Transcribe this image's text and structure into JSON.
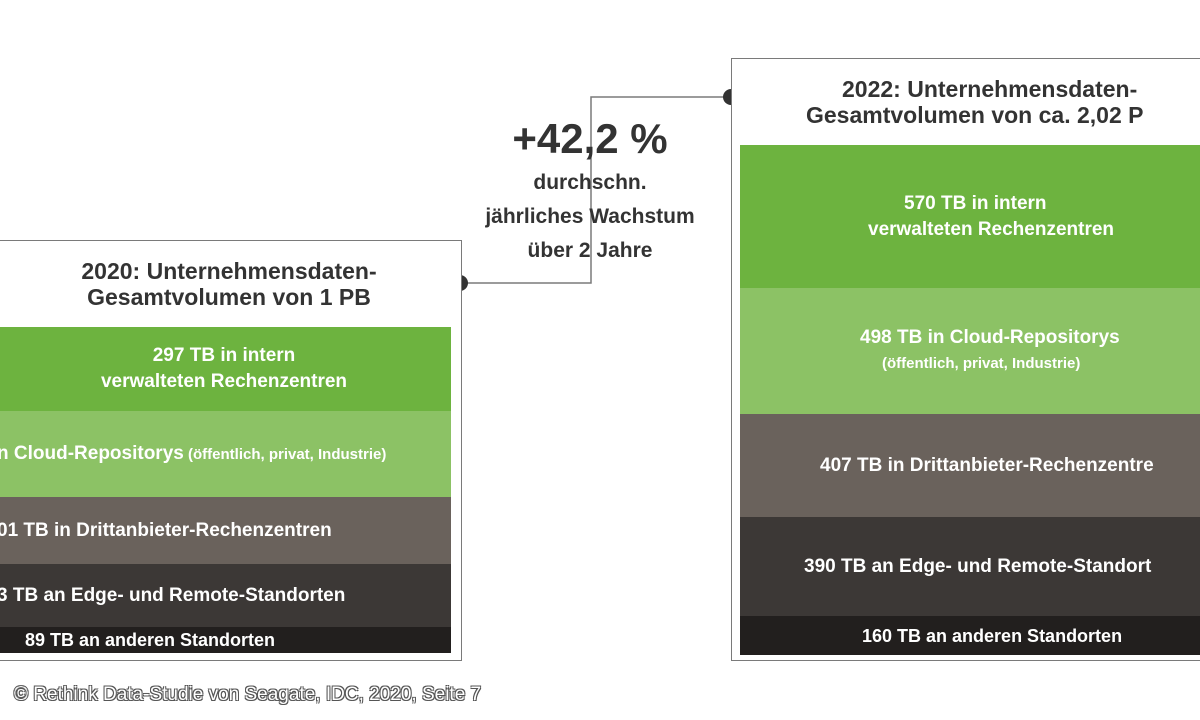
{
  "panel_2020": {
    "title_line1": "2020: Unternehmensdaten-",
    "title_line2": "Gesamtvolumen von 1 PB",
    "segments": [
      {
        "line1": "297 TB in intern",
        "line2": "verwalteten Rechenzentren",
        "color": "#6db33f"
      },
      {
        "line1": "n Cloud-Repositorys",
        "note": " (öffentlich, privat, Industrie)",
        "color": "#8cc265"
      },
      {
        "line1": "01 TB in Drittanbieter-Rechenzentren",
        "color": "#6a625c"
      },
      {
        "line1": "3 TB an Edge- und Remote-Standorten",
        "color": "#3c3836"
      },
      {
        "line1": "89 TB an anderen Standorten",
        "color": "#221f1e"
      }
    ]
  },
  "panel_2022": {
    "title_line1": "2022: Unternehmensdaten-",
    "title_line2": "Gesamtvolumen von ca. 2,02 P",
    "segments": [
      {
        "line1": "570 TB in intern",
        "line2": "verwalteten Rechenzentren",
        "color": "#6db33f"
      },
      {
        "line1": "498 TB in Cloud-Repositorys",
        "line2": "(öffentlich, privat, Industrie)",
        "color": "#8cc265"
      },
      {
        "line1": "407 TB in Drittanbieter-Rechenzentre",
        "color": "#6a625c"
      },
      {
        "line1": "390 TB an Edge- und Remote-Standort",
        "color": "#3c3836"
      },
      {
        "line1": "160 TB an anderen Standorten",
        "color": "#221f1e"
      }
    ]
  },
  "growth": {
    "value": "+42,2 %",
    "line1": "durchschn.",
    "line2": "jährliches Wachstum",
    "line3": "über 2 Jahre"
  },
  "credit": "© Rethink Data-Studie von Seagate, IDC, 2020, Seite 7",
  "colors": {
    "border": "#7a7a7a",
    "connector": "#7a7a7a",
    "dot": "#333333"
  }
}
